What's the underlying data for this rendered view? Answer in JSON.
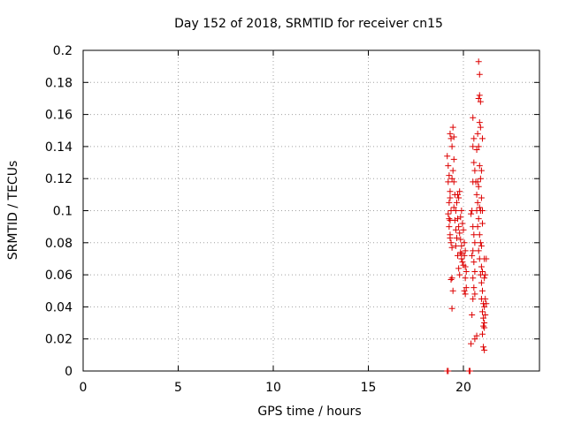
{
  "chart_data": {
    "type": "scatter",
    "title": "Day 152 of 2018, SRMTID for receiver cn15",
    "xlabel": "GPS time / hours",
    "ylabel": "SRMTID / TECUs",
    "xlim": [
      0,
      24
    ],
    "ylim": [
      0,
      0.2
    ],
    "xticks": [
      0,
      5,
      10,
      15,
      20
    ],
    "yticks": [
      0,
      0.02,
      0.04,
      0.06,
      0.08,
      0.1,
      0.12,
      0.14,
      0.16,
      0.18,
      0.2
    ],
    "grid": true,
    "marker": "+",
    "color": "#dd0000",
    "series": [
      {
        "points": [
          [
            19.15,
            0.0
          ],
          [
            19.2,
            0.0
          ],
          [
            20.3,
            0.0
          ],
          [
            20.35,
            0.0
          ],
          [
            19.15,
            0.134
          ],
          [
            19.2,
            0.128
          ],
          [
            19.25,
            0.122
          ],
          [
            19.2,
            0.118
          ],
          [
            19.3,
            0.112
          ],
          [
            19.25,
            0.105
          ],
          [
            19.2,
            0.098
          ],
          [
            19.3,
            0.094
          ],
          [
            19.25,
            0.09
          ],
          [
            19.3,
            0.085
          ],
          [
            19.35,
            0.08
          ],
          [
            19.4,
            0.077
          ],
          [
            19.3,
            0.148
          ],
          [
            19.35,
            0.145
          ],
          [
            19.4,
            0.14
          ],
          [
            19.45,
            0.152
          ],
          [
            19.5,
            0.146
          ],
          [
            19.5,
            0.132
          ],
          [
            19.45,
            0.125
          ],
          [
            19.5,
            0.118
          ],
          [
            19.55,
            0.11
          ],
          [
            19.5,
            0.102
          ],
          [
            19.6,
            0.1
          ],
          [
            19.55,
            0.094
          ],
          [
            19.6,
            0.088
          ],
          [
            19.65,
            0.083
          ],
          [
            19.6,
            0.078
          ],
          [
            19.7,
            0.072
          ],
          [
            19.7,
            0.11
          ],
          [
            19.75,
            0.108
          ],
          [
            19.8,
            0.112
          ],
          [
            19.65,
            0.105
          ],
          [
            19.7,
            0.095
          ],
          [
            19.75,
            0.09
          ],
          [
            19.8,
            0.086
          ],
          [
            19.85,
            0.082
          ],
          [
            19.9,
            0.078
          ],
          [
            19.85,
            0.074
          ],
          [
            19.9,
            0.07
          ],
          [
            19.95,
            0.068
          ],
          [
            20.0,
            0.066
          ],
          [
            19.75,
            0.064
          ],
          [
            19.8,
            0.06
          ],
          [
            19.9,
            0.073
          ],
          [
            19.85,
            0.096
          ],
          [
            19.9,
            0.1
          ],
          [
            19.95,
            0.092
          ],
          [
            20.0,
            0.088
          ],
          [
            20.05,
            0.08
          ],
          [
            20.1,
            0.075
          ],
          [
            20.05,
            0.072
          ],
          [
            20.1,
            0.065
          ],
          [
            20.15,
            0.062
          ],
          [
            20.1,
            0.058
          ],
          [
            20.15,
            0.052
          ],
          [
            20.05,
            0.05
          ],
          [
            20.1,
            0.048
          ],
          [
            19.4,
            0.058
          ],
          [
            19.35,
            0.057
          ],
          [
            19.45,
            0.05
          ],
          [
            19.4,
            0.039
          ],
          [
            19.3,
            0.083
          ],
          [
            19.25,
            0.095
          ],
          [
            19.35,
            0.1
          ],
          [
            19.3,
            0.108
          ],
          [
            19.4,
            0.12
          ],
          [
            20.5,
            0.158
          ],
          [
            20.55,
            0.145
          ],
          [
            20.5,
            0.14
          ],
          [
            20.55,
            0.13
          ],
          [
            20.6,
            0.125
          ],
          [
            20.5,
            0.118
          ],
          [
            20.45,
            0.1
          ],
          [
            20.4,
            0.098
          ],
          [
            20.5,
            0.09
          ],
          [
            20.55,
            0.085
          ],
          [
            20.6,
            0.08
          ],
          [
            20.5,
            0.075
          ],
          [
            20.45,
            0.072
          ],
          [
            20.55,
            0.068
          ],
          [
            20.6,
            0.062
          ],
          [
            20.5,
            0.058
          ],
          [
            20.55,
            0.052
          ],
          [
            20.6,
            0.048
          ],
          [
            20.5,
            0.045
          ],
          [
            20.45,
            0.035
          ],
          [
            20.4,
            0.017
          ],
          [
            20.6,
            0.02
          ],
          [
            20.7,
            0.022
          ],
          [
            20.8,
            0.193
          ],
          [
            20.85,
            0.185
          ],
          [
            20.8,
            0.17
          ],
          [
            20.85,
            0.172
          ],
          [
            20.9,
            0.168
          ],
          [
            20.85,
            0.155
          ],
          [
            20.9,
            0.152
          ],
          [
            20.75,
            0.148
          ],
          [
            20.8,
            0.14
          ],
          [
            20.85,
            0.128
          ],
          [
            20.9,
            0.12
          ],
          [
            20.75,
            0.118
          ],
          [
            20.8,
            0.115
          ],
          [
            20.7,
            0.11
          ],
          [
            20.75,
            0.105
          ],
          [
            20.85,
            0.102
          ],
          [
            20.9,
            0.1
          ],
          [
            20.8,
            0.095
          ],
          [
            20.75,
            0.09
          ],
          [
            20.85,
            0.085
          ],
          [
            20.9,
            0.08
          ],
          [
            20.95,
            0.078
          ],
          [
            20.8,
            0.075
          ],
          [
            20.85,
            0.07
          ],
          [
            20.95,
            0.065
          ],
          [
            20.9,
            0.06
          ],
          [
            21.0,
            0.062
          ],
          [
            20.95,
            0.055
          ],
          [
            21.0,
            0.05
          ],
          [
            20.95,
            0.045
          ],
          [
            21.05,
            0.042
          ],
          [
            21.1,
            0.04
          ],
          [
            21.0,
            0.037
          ],
          [
            21.05,
            0.033
          ],
          [
            21.1,
            0.03
          ],
          [
            21.05,
            0.028
          ],
          [
            21.1,
            0.027
          ],
          [
            21.0,
            0.023
          ],
          [
            21.05,
            0.015
          ],
          [
            21.1,
            0.013
          ],
          [
            21.15,
            0.045
          ],
          [
            21.2,
            0.042
          ],
          [
            21.15,
            0.035
          ],
          [
            21.1,
            0.07
          ],
          [
            21.2,
            0.07
          ],
          [
            21.15,
            0.06
          ],
          [
            21.1,
            0.058
          ],
          [
            21.0,
            0.1
          ],
          [
            20.95,
            0.108
          ],
          [
            21.0,
            0.092
          ],
          [
            20.7,
            0.138
          ],
          [
            20.65,
            0.118
          ],
          [
            20.7,
            0.1
          ],
          [
            21.0,
            0.145
          ],
          [
            20.95,
            0.125
          ]
        ]
      }
    ]
  }
}
